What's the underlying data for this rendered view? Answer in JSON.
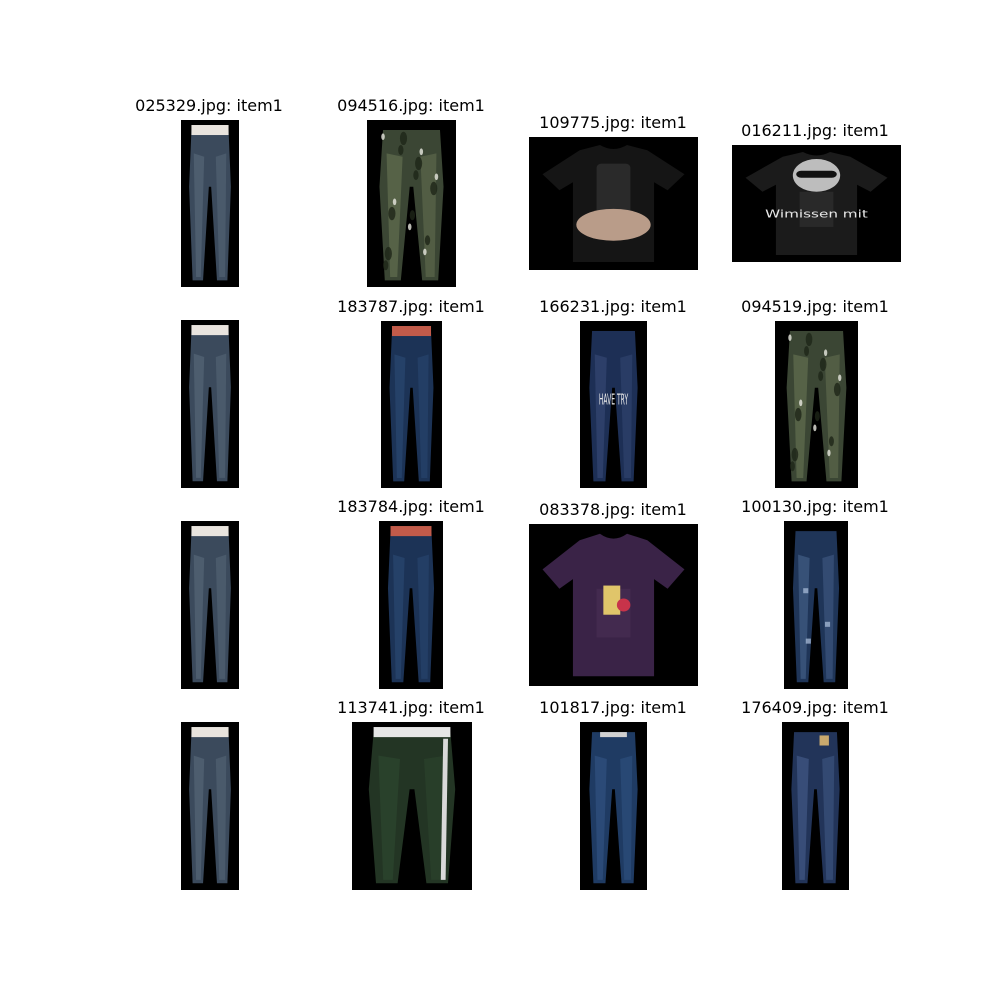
{
  "grid": {
    "rows": [
      [
        {
          "title": "025329.jpg: item1",
          "kind": "jeans-back",
          "palette": [
            "#3b4a5c",
            "#5d6e7e"
          ]
        },
        {
          "title": "094516.jpg: item1",
          "kind": "camo-pants",
          "palette": [
            "#3b4634",
            "#6e7a58"
          ]
        },
        {
          "title": "109775.jpg: item1",
          "kind": "selfie-shirt",
          "palette": [
            "#151515",
            "#b99c89"
          ]
        },
        {
          "title": "016211.jpg: item1",
          "kind": "graphic-tee",
          "palette": [
            "#1b1b1b",
            "#e7e7e7"
          ],
          "print_text": "Wimissen mit"
        }
      ],
      [
        {
          "title": "",
          "kind": "jeans-back",
          "palette": [
            "#3b4a5c",
            "#5d6e7e"
          ]
        },
        {
          "title": "183787.jpg: item1",
          "kind": "jeans-front",
          "palette": [
            "#1c3356",
            "#2d4c78"
          ]
        },
        {
          "title": "166231.jpg: item1",
          "kind": "printed-jeans",
          "palette": [
            "#1d2f55",
            "#3a4d7a"
          ],
          "print_text": "HAVE TRY"
        },
        {
          "title": "094519.jpg: item1",
          "kind": "camo-jogger",
          "palette": [
            "#3b4634",
            "#6e7a58"
          ]
        }
      ],
      [
        {
          "title": "",
          "kind": "jeans-back",
          "palette": [
            "#3b4a5c",
            "#5d6e7e"
          ]
        },
        {
          "title": "183784.jpg: item1",
          "kind": "jeans-front",
          "palette": [
            "#1c3356",
            "#2d4c78"
          ]
        },
        {
          "title": "083378.jpg: item1",
          "kind": "purple-tee",
          "palette": [
            "#3a2347",
            "#56385f"
          ]
        },
        {
          "title": "100130.jpg: item1",
          "kind": "jeans-ripped",
          "palette": [
            "#1f3558",
            "#4b6792"
          ]
        }
      ],
      [
        {
          "title": "",
          "kind": "jeans-back",
          "palette": [
            "#3b4a5c",
            "#5d6e7e"
          ]
        },
        {
          "title": "113741.jpg: item1",
          "kind": "green-track",
          "palette": [
            "#233524",
            "#2f4a31"
          ]
        },
        {
          "title": "101817.jpg: item1",
          "kind": "jeans-belt",
          "palette": [
            "#1f3b63",
            "#345889"
          ]
        },
        {
          "title": "176409.jpg: item1",
          "kind": "jeans-back2",
          "palette": [
            "#223459",
            "#4a6391"
          ]
        }
      ]
    ]
  }
}
